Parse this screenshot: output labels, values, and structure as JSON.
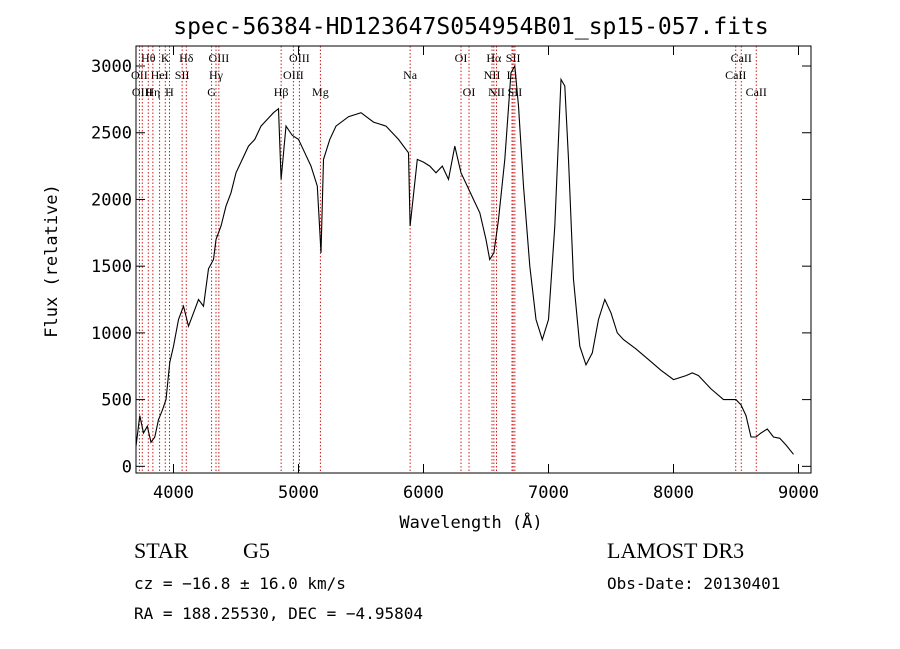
{
  "title": "spec-56384-HD123647S054954B01_sp15-057.fits",
  "footer": {
    "object_class": "STAR",
    "subclass": "G5",
    "survey": "LAMOST DR3",
    "cz": "cz = −16.8 ± 16.0 km/s",
    "obs_date": "Obs-Date: 20130401",
    "coords": "RA = 188.25530, DEC =  −4.95804"
  },
  "chart_data": {
    "type": "line",
    "title": "spec-56384-HD123647S054954B01_sp15-057.fits",
    "xlabel": "Wavelength (Å)",
    "ylabel": "Flux (relative)",
    "xlim": [
      3700,
      9100
    ],
    "ylim": [
      -50,
      3150
    ],
    "x_ticks": [
      4000,
      5000,
      6000,
      7000,
      8000,
      9000
    ],
    "y_ticks": [
      0,
      500,
      1000,
      1500,
      2000,
      2500,
      3000
    ],
    "grid": false,
    "line_color": "#000000",
    "marker_color": "#cc0000",
    "series": [
      {
        "x": [
          3700,
          3730,
          3760,
          3790,
          3820,
          3850,
          3880,
          3910,
          3940,
          3970,
          4000,
          4040,
          4080,
          4120,
          4160,
          4200,
          4240,
          4280,
          4320,
          4340,
          4380,
          4420,
          4460,
          4500,
          4550,
          4600,
          4650,
          4700,
          4750,
          4800,
          4840,
          4861,
          4900,
          4950,
          5000,
          5050,
          5100,
          5150,
          5180,
          5200,
          5250,
          5300,
          5400,
          5500,
          5600,
          5700,
          5800,
          5880,
          5893,
          5950,
          6000,
          6050,
          6100,
          6150,
          6200,
          6250,
          6300,
          6350,
          6400,
          6450,
          6500,
          6530,
          6563,
          6600,
          6650,
          6700,
          6730,
          6760,
          6800,
          6850,
          6900,
          6950,
          7000,
          7050,
          7100,
          7130,
          7160,
          7200,
          7250,
          7300,
          7350,
          7400,
          7450,
          7500,
          7550,
          7600,
          7700,
          7800,
          7900,
          8000,
          8100,
          8150,
          8200,
          8300,
          8400,
          8500,
          8540,
          8580,
          8620,
          8660,
          8700,
          8750,
          8800,
          8850,
          8900,
          8960
        ],
        "y": [
          150,
          380,
          250,
          300,
          180,
          220,
          350,
          420,
          500,
          780,
          900,
          1100,
          1200,
          1050,
          1150,
          1250,
          1200,
          1480,
          1550,
          1700,
          1800,
          1950,
          2050,
          2200,
          2300,
          2400,
          2450,
          2550,
          2600,
          2650,
          2680,
          2150,
          2550,
          2480,
          2450,
          2350,
          2250,
          2100,
          1600,
          2300,
          2450,
          2550,
          2620,
          2650,
          2580,
          2550,
          2450,
          2350,
          1800,
          2300,
          2280,
          2250,
          2200,
          2250,
          2150,
          2400,
          2200,
          2100,
          2000,
          1900,
          1700,
          1550,
          1600,
          1850,
          2300,
          2950,
          3000,
          2700,
          2100,
          1500,
          1100,
          950,
          1100,
          1800,
          2900,
          2850,
          2300,
          1400,
          900,
          760,
          850,
          1100,
          1250,
          1150,
          1000,
          950,
          880,
          800,
          720,
          650,
          680,
          700,
          680,
          580,
          500,
          500,
          460,
          380,
          220,
          220,
          250,
          280,
          220,
          210,
          160,
          90
        ]
      }
    ],
    "line_markers": [
      {
        "label": "Hθ",
        "x": 3798,
        "row": 0
      },
      {
        "label": "OII",
        "x": 3727,
        "row": 1
      },
      {
        "label": "OIII",
        "x": 3750,
        "row": 2
      },
      {
        "label": "K",
        "x": 3934,
        "row": 0
      },
      {
        "label": "HeI",
        "x": 3889,
        "row": 1
      },
      {
        "label": "Hη",
        "x": 3835,
        "row": 2
      },
      {
        "label": "Hδ",
        "x": 4102,
        "row": 0
      },
      {
        "label": "SII",
        "x": 4069,
        "row": 1
      },
      {
        "label": "H",
        "x": 3968,
        "row": 2
      },
      {
        "label": "OIII",
        "x": 4363,
        "row": 0
      },
      {
        "label": "Hγ",
        "x": 4340,
        "row": 1
      },
      {
        "label": "G",
        "x": 4305,
        "row": 2
      },
      {
        "label": "Hβ",
        "x": 4861,
        "row": 2
      },
      {
        "label": "OIII",
        "x": 5007,
        "row": 0
      },
      {
        "label": "OIII",
        "x": 4959,
        "row": 1
      },
      {
        "label": "Mg",
        "x": 5175,
        "row": 2
      },
      {
        "label": "Na",
        "x": 5893,
        "row": 1
      },
      {
        "label": "OI",
        "x": 6300,
        "row": 0
      },
      {
        "label": "OI",
        "x": 6364,
        "row": 2
      },
      {
        "label": "Hα",
        "x": 6563,
        "row": 0
      },
      {
        "label": "NII",
        "x": 6548,
        "row": 1
      },
      {
        "label": "NII",
        "x": 6584,
        "row": 2
      },
      {
        "label": "SII",
        "x": 6717,
        "row": 0
      },
      {
        "label": "Li",
        "x": 6708,
        "row": 1
      },
      {
        "label": "SII",
        "x": 6731,
        "row": 2
      },
      {
        "label": "CaII",
        "x": 8542,
        "row": 0
      },
      {
        "label": "CaII",
        "x": 8498,
        "row": 1
      },
      {
        "label": "CaII",
        "x": 8662,
        "row": 2
      }
    ]
  }
}
